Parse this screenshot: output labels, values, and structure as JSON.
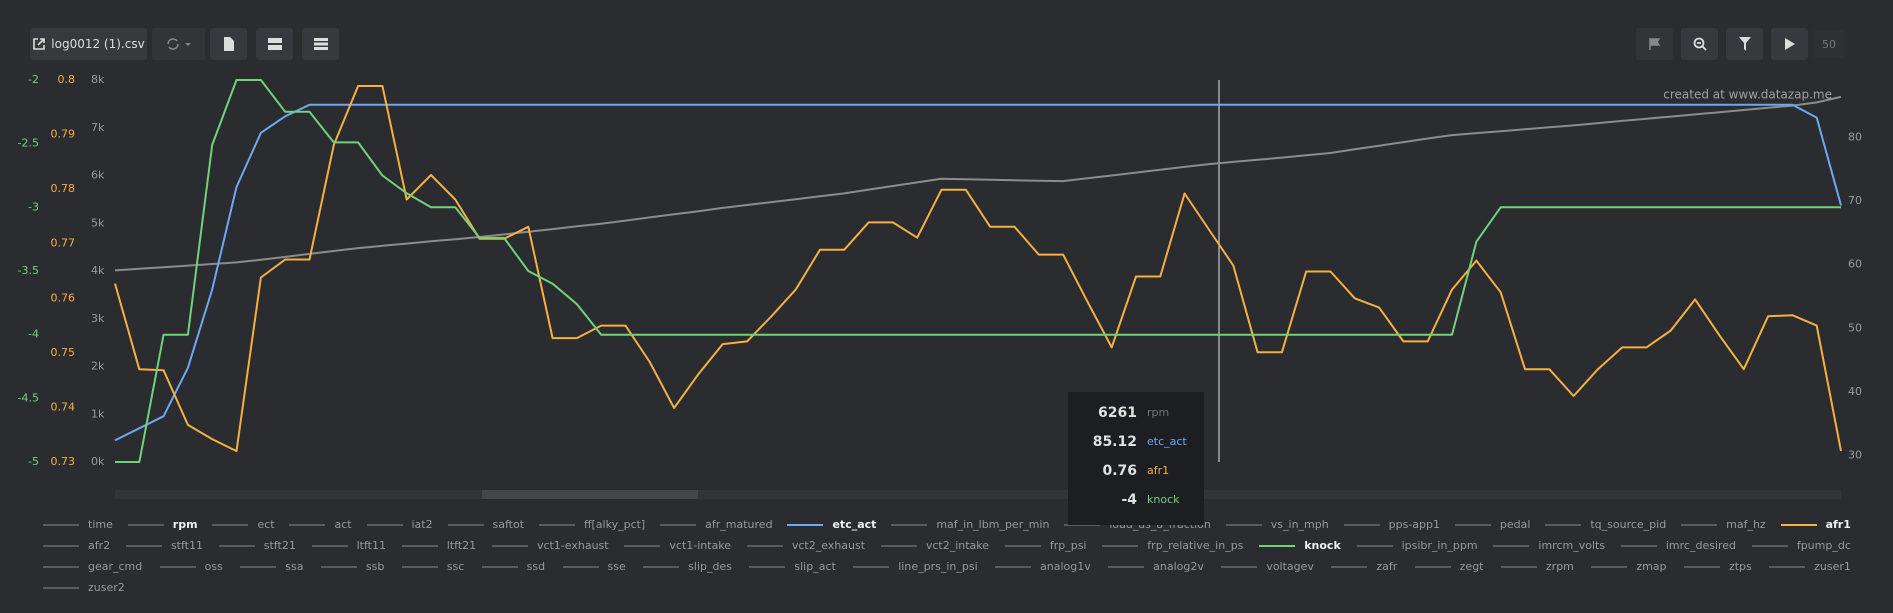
{
  "toolbar": {
    "file": "log0012 (1).csv",
    "speed": "50"
  },
  "watermark": "created at www.datazap.me",
  "chart_data": {
    "type": "line",
    "series": [
      {
        "name": "rpm",
        "color": "#8c8c8c",
        "values": [
          4013,
          4047,
          4080,
          4114,
          4147,
          4181,
          4234,
          4295,
          4359,
          4419,
          4480,
          4528,
          4574,
          4621,
          4667,
          4712,
          4766,
          4822,
          4877,
          4936,
          4991,
          5056,
          5122,
          5187,
          5253,
          5322,
          5383,
          5443,
          5504,
          5564,
          5625,
          5704,
          5780,
          5855,
          5931,
          5921,
          5911,
          5900,
          5890,
          5883,
          5942,
          6001,
          6060,
          6122,
          6181,
          6239,
          6284,
          6329,
          6375,
          6422,
          6472,
          6548,
          6623,
          6699,
          6775,
          6847,
          6887,
          6928,
          6968,
          7009,
          7050,
          7098,
          7143,
          7189,
          7234,
          7279,
          7325,
          7372,
          7418,
          7463,
          7531,
          7647
        ]
      },
      {
        "name": "etc_act",
        "color": "#6ea8f2",
        "axis": "y2",
        "values": [
          32.4,
          34.3,
          36.2,
          43.8,
          56.1,
          72.2,
          80.7,
          83.3,
          85.1,
          85.1,
          85.1,
          85.1,
          85.1,
          85.1,
          85.1,
          85.1,
          85.1,
          85.1,
          85.1,
          85.1,
          85.1,
          85.1,
          85.1,
          85.1,
          85.1,
          85.1,
          85.1,
          85.1,
          85.1,
          85.1,
          85.1,
          85.1,
          85.1,
          85.1,
          85.1,
          85.1,
          85.1,
          85.1,
          85.1,
          85.1,
          85.1,
          85.1,
          85.1,
          85.1,
          85.1,
          85.1,
          85.1,
          85.1,
          85.1,
          85.1,
          85.1,
          85.1,
          85.1,
          85.1,
          85.1,
          85.1,
          85.1,
          85.1,
          85.1,
          85.1,
          85.1,
          85.1,
          85.1,
          85.1,
          85.1,
          85.1,
          85.1,
          85.1,
          85.1,
          85.1,
          83.1,
          69.3
        ]
      },
      {
        "name": "afr1",
        "color": "#f5b041",
        "axis": "y3",
        "values": [
          0.7627,
          0.747,
          0.7468,
          0.7368,
          0.7342,
          0.732,
          0.7638,
          0.7671,
          0.7671,
          0.7881,
          0.7989,
          0.7989,
          0.7781,
          0.7826,
          0.7781,
          0.7709,
          0.7709,
          0.7731,
          0.7527,
          0.7527,
          0.755,
          0.755,
          0.7483,
          0.7399,
          0.7461,
          0.7516,
          0.7521,
          0.7567,
          0.7616,
          0.7689,
          0.7689,
          0.7739,
          0.7739,
          0.7711,
          0.7799,
          0.7799,
          0.7731,
          0.7731,
          0.768,
          0.768,
          0.7594,
          0.751,
          0.764,
          0.764,
          0.7792,
          0.7726,
          0.766,
          0.7501,
          0.7501,
          0.7649,
          0.7649,
          0.76,
          0.7583,
          0.7521,
          0.7521,
          0.7616,
          0.7669,
          0.7611,
          0.747,
          0.747,
          0.7421,
          0.747,
          0.751,
          0.751,
          0.7541,
          0.7598,
          0.7532,
          0.747,
          0.7567,
          0.7569,
          0.755,
          0.732
        ]
      },
      {
        "name": "knock",
        "color": "#6fd37a",
        "axis": "y4",
        "values": [
          -5,
          -5,
          -4,
          -4,
          -2.51,
          -2,
          -2,
          -2.25,
          -2.25,
          -2.49,
          -2.49,
          -2.75,
          -2.89,
          -3,
          -3,
          -3.24,
          -3.24,
          -3.5,
          -3.6,
          -3.76,
          -4,
          -4,
          -4,
          -4,
          -4,
          -4,
          -4,
          -4,
          -4,
          -4,
          -4,
          -4,
          -4,
          -4,
          -4,
          -4,
          -4,
          -4,
          -4,
          -4,
          -4,
          -4,
          -4,
          -4,
          -4,
          -4,
          -4,
          -4,
          -4,
          -4,
          -4,
          -4,
          -4,
          -4,
          -4,
          -4,
          -3.27,
          -3,
          -3,
          -3,
          -3,
          -3,
          -3,
          -3,
          -3,
          -3,
          -3,
          -3,
          -3,
          -3,
          -3,
          -3
        ]
      }
    ],
    "ylim": [
      0,
      8000
    ],
    "yticks": [
      {
        "value": 0,
        "label": "0k"
      },
      {
        "value": 1000,
        "label": "1k"
      },
      {
        "value": 2000,
        "label": "2k"
      },
      {
        "value": 3000,
        "label": "3k"
      },
      {
        "value": 4000,
        "label": "4k"
      },
      {
        "value": 5000,
        "label": "5k"
      },
      {
        "value": 6000,
        "label": "6k"
      },
      {
        "value": 7000,
        "label": "7k"
      },
      {
        "value": 8000,
        "label": "8k"
      }
    ],
    "y2lim": [
      29,
      89
    ],
    "y2ticks": [
      30,
      40,
      50,
      60,
      70,
      80
    ],
    "y3lim": [
      0.73,
      0.8
    ],
    "y3ticks": [
      0.73,
      0.74,
      0.75,
      0.76,
      0.77,
      0.78,
      0.79,
      0.8
    ],
    "y4lim": [
      -5,
      -2
    ],
    "y4ticks": [
      -5,
      -4.5,
      -4,
      -3.5,
      -3,
      -2.5,
      -2
    ]
  },
  "tooltip": {
    "values": [
      "6261",
      "85.12",
      "0.76",
      "-4"
    ]
  },
  "legend": {
    "rows": [
      [
        "time",
        "rpm",
        "ect",
        "act",
        "iat2",
        "saftot",
        "ff[alky_pct]",
        "afr_matured",
        "etc_act",
        "maf_in_lbm_per_min",
        "load_as_a_fraction",
        "vs_in_mph",
        "pps-app1",
        "pedal",
        "tq_source_pid",
        "maf_hz",
        "afr1"
      ],
      [
        "afr2",
        "stft11",
        "stft21",
        "ltft11",
        "ltft21",
        "vct1-exhaust",
        "vct1-intake",
        "vct2_exhaust",
        "vct2_intake",
        "frp_psi",
        "frp_relative_in_ps",
        "knock",
        "ipsibr_in_ppm",
        "imrcm_volts",
        "imrc_desired",
        "fpump_dc"
      ],
      [
        "gear_cmd",
        "oss",
        "ssa",
        "ssb",
        "ssc",
        "ssd",
        "sse",
        "slip_des",
        "slip_act",
        "line_prs_in_psi",
        "analog1v",
        "analog2v",
        "voltagev",
        "zafr",
        "zegt",
        "zrpm",
        "zmap",
        "ztps",
        "zuser1"
      ],
      [
        "zuser2"
      ]
    ]
  }
}
